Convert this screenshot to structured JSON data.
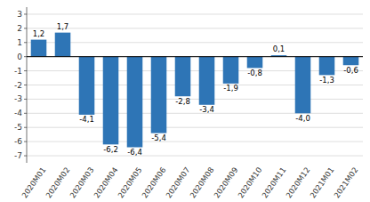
{
  "chart_data": {
    "type": "bar",
    "categories": [
      "2020M01",
      "2020M02",
      "2020M03",
      "2020M04",
      "2020M05",
      "2020M06",
      "2020M07",
      "2020M08",
      "2020M09",
      "2020M10",
      "2020M11",
      "2020M12",
      "2021M01",
      "2021M02"
    ],
    "values": [
      1.2,
      1.7,
      -4.1,
      -6.2,
      -6.4,
      -5.4,
      -2.8,
      -3.4,
      -1.9,
      -0.8,
      0.1,
      -4.0,
      -1.3,
      -0.6
    ],
    "value_labels": [
      "1,2",
      "1,7",
      "-4,1",
      "-6,2",
      "-6,4",
      "-5,4",
      "-2,8",
      "-3,4",
      "-1,9",
      "-0,8",
      "0,1",
      "-4,0",
      "-1,3",
      "-0,6"
    ],
    "data_labels": true,
    "color": "#2E75B6",
    "ylim": [
      -7.5,
      3.5
    ],
    "yticks": [
      -7,
      -6,
      -5,
      -4,
      -3,
      -2,
      -1,
      0,
      1,
      2,
      3
    ],
    "grid": true
  }
}
